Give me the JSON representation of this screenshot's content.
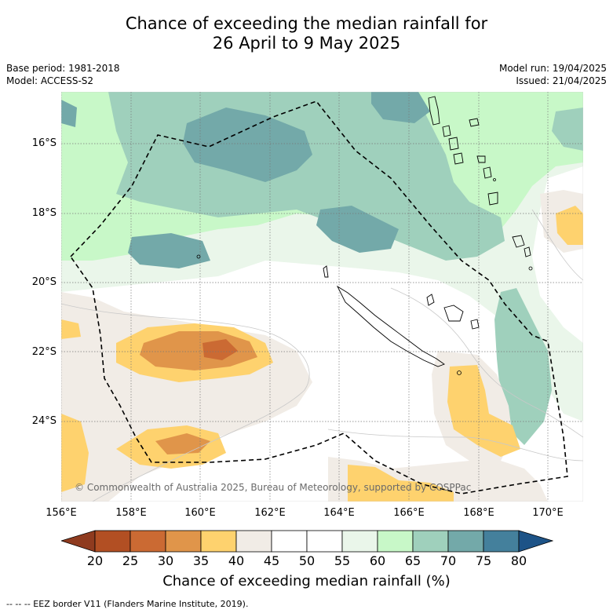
{
  "title": {
    "line1": "Chance of exceeding the median rainfall for",
    "line2": "26 April to 9 May 2025"
  },
  "meta": {
    "base_period": "Base period: 1981-2018",
    "model": "Model: ACCESS-S2",
    "model_run": "Model run: 19/04/2025",
    "issued": "Issued: 21/04/2025"
  },
  "map": {
    "lat_labels": [
      "16°S",
      "18°S",
      "20°S",
      "22°S",
      "24°S"
    ],
    "lon_labels": [
      "156°E",
      "158°E",
      "160°E",
      "162°E",
      "164°E",
      "166°E",
      "168°E",
      "170°E"
    ],
    "copyright": "© Commonwealth of Australia 2025, Bureau of Meteorology, supported by COSPPac"
  },
  "colorbar": {
    "ticks": [
      "20",
      "25",
      "30",
      "35",
      "40",
      "45",
      "50",
      "55",
      "60",
      "65",
      "70",
      "75",
      "80"
    ],
    "colors": [
      "#b24f23",
      "#cb6a33",
      "#e0954a",
      "#fed26e",
      "#f1ece6",
      "#ffffff",
      "#ffffff",
      "#eaf6ea",
      "#c8f8c8",
      "#9fd0bc",
      "#73a9a9",
      "#44809c"
    ],
    "low_end_color": "#8f3b1f",
    "high_end_color": "#1d5387",
    "label": "Chance of exceeding median rainfall (%)"
  },
  "footnote": "--  --  -- EEZ border V11 (Flanders Marine Institute, 2019)."
}
